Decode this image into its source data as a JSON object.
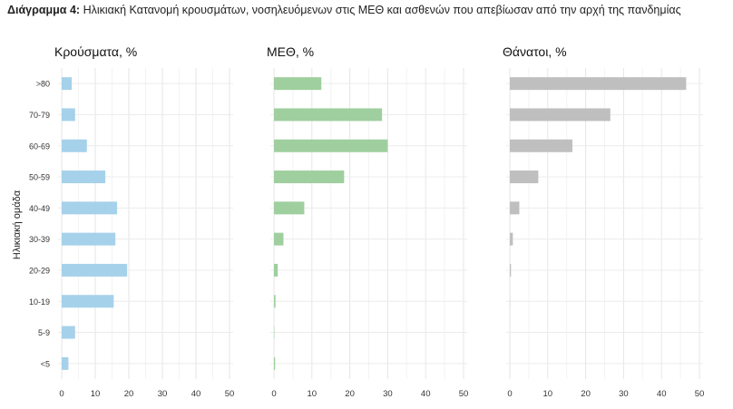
{
  "caption": {
    "lead": "Διάγραμμα 4:",
    "text": "Ηλικιακή Κατανομή κρουσμάτων, νοσηλευόμενων στις ΜΕΘ και ασθενών που απεβίωσαν από την αρχή της πανδημίας"
  },
  "chart_data": {
    "type": "bar",
    "orientation": "horizontal",
    "ylabel": "Ηλικιακή ομάδα",
    "categories": [
      ">80",
      "70-79",
      "60-69",
      "50-59",
      "40-49",
      "30-39",
      "20-29",
      "10-19",
      "5-9",
      "<5"
    ],
    "xlim": [
      0,
      50
    ],
    "xticks": [
      0,
      10,
      20,
      30,
      40,
      50
    ],
    "grid": true,
    "panels": [
      {
        "title": "Κρούσματα, %",
        "color": "#a6d1ea",
        "values": [
          3.0,
          4.0,
          7.5,
          13.0,
          16.5,
          16.0,
          19.5,
          15.5,
          4.0,
          2.0
        ]
      },
      {
        "title": "ΜΕΘ, %",
        "color": "#9fcf9f",
        "values": [
          12.5,
          28.5,
          30.0,
          18.5,
          8.0,
          2.5,
          1.0,
          0.4,
          0.1,
          0.3
        ]
      },
      {
        "title": "Θάνατοι, %",
        "color": "#bfbfbf",
        "values": [
          46.5,
          26.5,
          16.5,
          7.5,
          2.5,
          0.8,
          0.3,
          0.05,
          0.0,
          0.0
        ]
      }
    ]
  }
}
